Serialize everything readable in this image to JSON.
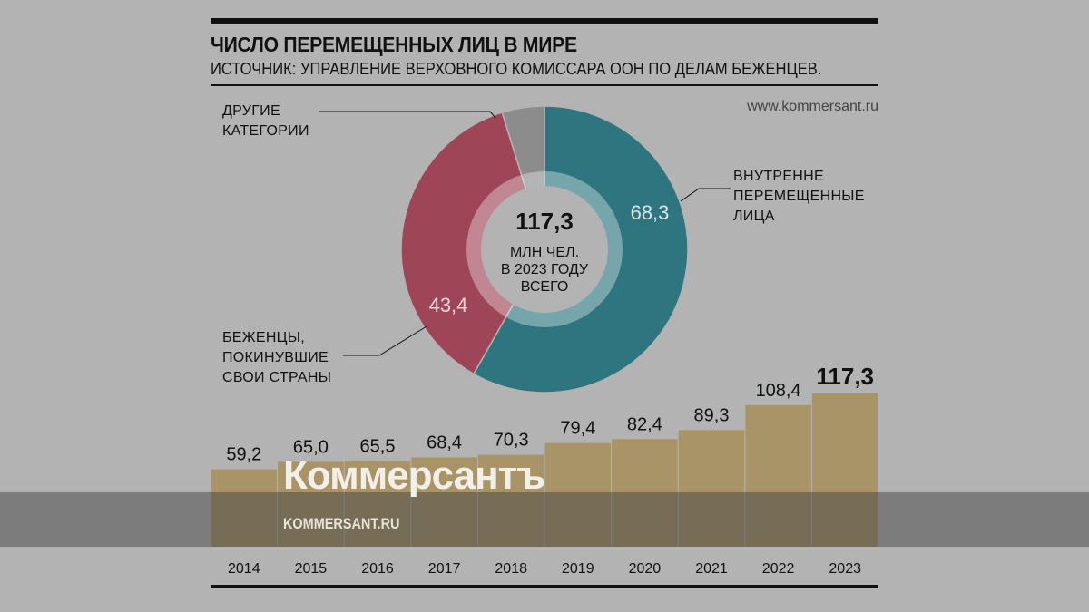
{
  "title": "ЧИСЛО ПЕРЕМЕЩЕННЫХ ЛИЦ В МИРЕ",
  "source": "ИСТОЧНИК: УПРАВЛЕНИЕ ВЕРХОВНОГО КОМИССАРА ООН ПО ДЕЛАМ БЕЖЕНЦЕВ.",
  "site": "www.kommersant.ru",
  "watermark": {
    "logo": "Коммерсантъ",
    "url": "KOMMERSANT.RU"
  },
  "colors": {
    "idp": "#2f7580",
    "refugees": "#9e4558",
    "other": "#8c8c8c",
    "bar": "#a89467"
  },
  "chart_data": [
    {
      "type": "pie",
      "title": "117,3",
      "center_lines": [
        "МЛН ЧЕЛ.",
        "В 2023 ГОДУ",
        "ВСЕГО"
      ],
      "slices": [
        {
          "label": "ВНУТРЕННЕ ПЕРЕМЕЩЕННЫЕ ЛИЦА",
          "label_lines": [
            "ВНУТРЕННЕ",
            "ПЕРЕМЕЩЕННЫЕ",
            "ЛИЦА"
          ],
          "value": 68.3,
          "value_label": "68,3"
        },
        {
          "label": "БЕЖЕНЦЫ, ПОКИНУВШИЕ СВОИ СТРАНЫ",
          "label_lines": [
            "БЕЖЕНЦЫ,",
            "ПОКИНУВШИЕ",
            "СВОИ СТРАНЫ"
          ],
          "value": 43.4,
          "value_label": "43,4"
        },
        {
          "label": "ДРУГИЕ КАТЕГОРИИ",
          "label_lines": [
            "ДРУГИЕ",
            "КАТЕГОРИИ"
          ],
          "value": 5.6
        }
      ]
    },
    {
      "type": "bar",
      "categories": [
        "2014",
        "2015",
        "2016",
        "2017",
        "2018",
        "2019",
        "2020",
        "2021",
        "2022",
        "2023"
      ],
      "values": [
        59.2,
        65.0,
        65.5,
        68.4,
        70.3,
        79.4,
        82.4,
        89.3,
        108.4,
        117.3
      ],
      "labels": [
        "59,2",
        "65,0",
        "65,5",
        "68,4",
        "70,3",
        "79,4",
        "82,4",
        "89,3",
        "108,4",
        "117,3"
      ],
      "ylim": [
        0,
        117.3
      ]
    }
  ]
}
